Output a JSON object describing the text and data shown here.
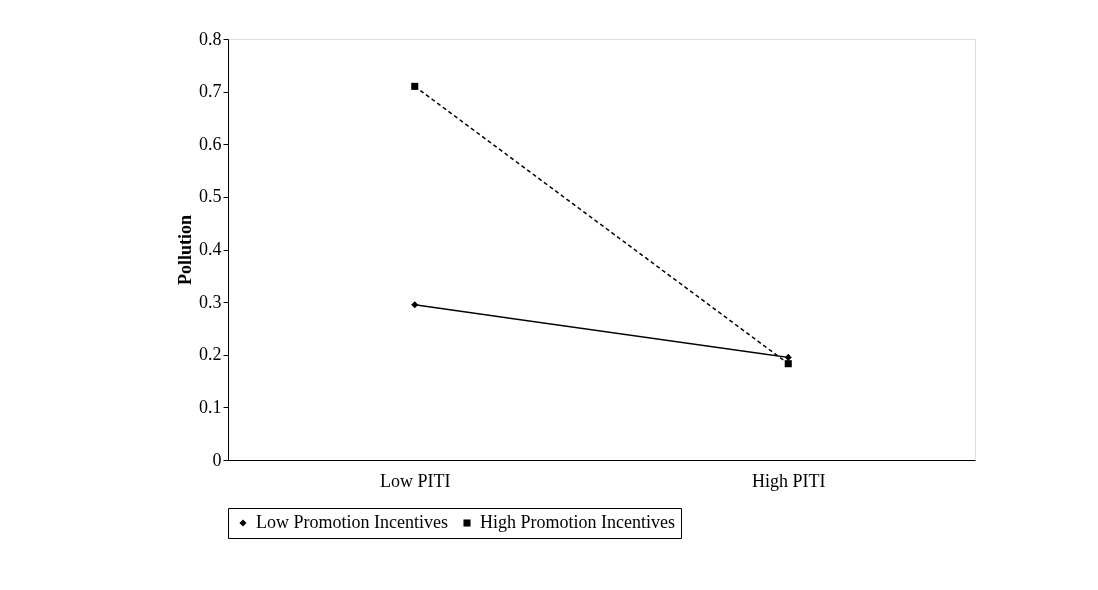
{
  "chart_data": {
    "type": "line",
    "ylabel": "Pollution",
    "categories": [
      "Low PITI",
      "High PITI"
    ],
    "series": [
      {
        "name": "Low Promotion Incentives",
        "color": "#000000",
        "values": [
          0.295,
          0.195
        ],
        "marker": "diamond",
        "line_style": "solid"
      },
      {
        "name": "High Promotion Incentives",
        "color": "#000000",
        "values": [
          0.71,
          0.183
        ],
        "marker": "square",
        "line_style": "dashed"
      }
    ],
    "ylim": [
      0,
      0.8
    ],
    "yticks": [
      0,
      0.1,
      0.2,
      0.3,
      0.4,
      0.5,
      0.6,
      0.7,
      0.8
    ],
    "grid": false,
    "legend": "bottom"
  }
}
